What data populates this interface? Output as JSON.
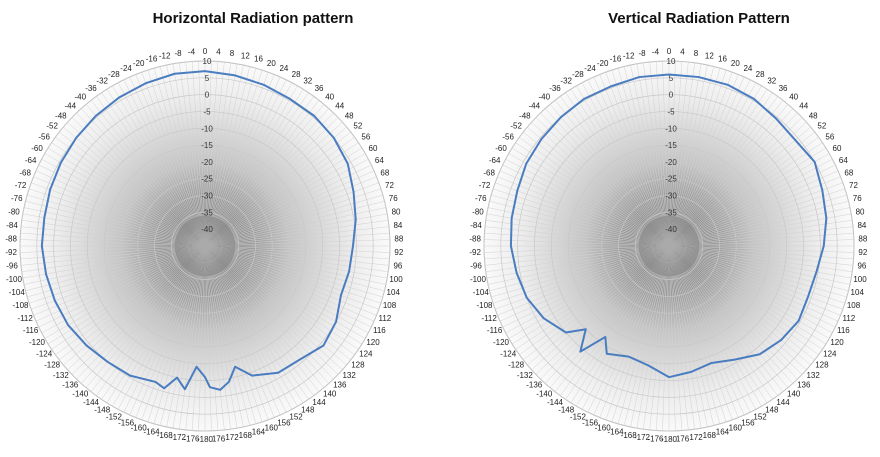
{
  "chart_data": [
    {
      "type": "polar",
      "title": "Horizontal Radiation pattern",
      "angle_unit": "degrees",
      "angle_ticks": [
        0,
        4,
        8,
        12,
        16,
        20,
        24,
        28,
        32,
        36,
        40,
        44,
        48,
        52,
        56,
        60,
        64,
        68,
        72,
        76,
        80,
        84,
        88,
        92,
        96,
        100,
        104,
        108,
        112,
        116,
        120,
        124,
        128,
        132,
        136,
        140,
        144,
        148,
        152,
        156,
        160,
        164,
        168,
        172,
        176,
        -180,
        -176,
        -172,
        -168,
        -164,
        -160,
        -156,
        -152,
        -148,
        -144,
        -140,
        -136,
        -132,
        -128,
        -124,
        -120,
        -116,
        -112,
        -108,
        -104,
        -100,
        -96,
        -92,
        -88,
        -84,
        -80,
        -76,
        -72,
        -68,
        -64,
        -60,
        -56,
        -52,
        -48,
        -44,
        -40,
        -36,
        -32,
        -28,
        -24,
        -20,
        -16,
        -12,
        -8,
        -4
      ],
      "radial_ticks": [
        10,
        5,
        0,
        -5,
        -10,
        -15,
        -20,
        -25,
        -30,
        -35,
        -40
      ],
      "rlim": [
        -45,
        10
      ],
      "series_color": "#4a7cc0",
      "series": [
        {
          "theta": [
            0,
            10,
            20,
            30,
            40,
            50,
            60,
            70,
            80,
            90,
            100,
            110,
            120,
            130,
            140,
            150,
            160,
            166,
            170,
            174,
            178,
            180,
            184,
            188,
            192,
            196,
            200,
            210,
            220,
            230,
            240,
            250,
            260,
            270,
            280,
            290,
            300,
            310,
            320,
            330,
            340,
            350
          ],
          "r": [
            7.0,
            6.5,
            6.0,
            5.5,
            5.5,
            5.0,
            4.0,
            2.0,
            0.5,
            -1.0,
            -1.5,
            -2.0,
            0.0,
            1.0,
            -1.0,
            -1.5,
            -4.0,
            -8.0,
            -4.0,
            -2.0,
            -3.0,
            -6.0,
            -9.0,
            -2.0,
            -5.0,
            -1.0,
            -2.0,
            -0.5,
            0.0,
            1.0,
            2.0,
            2.5,
            3.0,
            3.5,
            3.5,
            4.0,
            4.5,
            5.0,
            5.5,
            6.0,
            6.5,
            7.0
          ]
        }
      ]
    },
    {
      "type": "polar",
      "title": "Vertical Radiation Pattern",
      "angle_unit": "degrees",
      "angle_ticks": [
        0,
        4,
        8,
        12,
        16,
        20,
        24,
        28,
        32,
        36,
        40,
        44,
        48,
        52,
        56,
        60,
        64,
        68,
        72,
        76,
        80,
        84,
        88,
        92,
        96,
        100,
        104,
        108,
        112,
        116,
        120,
        124,
        128,
        132,
        136,
        140,
        144,
        148,
        152,
        156,
        160,
        164,
        168,
        172,
        176,
        -180,
        -176,
        -172,
        -168,
        -164,
        -160,
        -156,
        -152,
        -148,
        -144,
        -140,
        -136,
        -132,
        -128,
        -124,
        -120,
        -116,
        -112,
        -108,
        -104,
        -100,
        -96,
        -92,
        -88,
        -84,
        -80,
        -76,
        -72,
        -68,
        -64,
        -60,
        -56,
        -52,
        -48,
        -44,
        -40,
        -36,
        -32,
        -28,
        -24,
        -20,
        -16,
        -12,
        -8,
        -4
      ],
      "radial_ticks": [
        10,
        5,
        0,
        -5,
        -10,
        -15,
        -20,
        -25,
        -30,
        -35,
        -40
      ],
      "rlim": [
        -45,
        10
      ],
      "series_color": "#4a7cc0",
      "series": [
        {
          "theta": [
            0,
            10,
            20,
            30,
            40,
            50,
            60,
            70,
            80,
            90,
            100,
            110,
            120,
            130,
            140,
            150,
            160,
            170,
            180,
            190,
            200,
            210,
            215,
            220,
            225,
            230,
            240,
            250,
            260,
            270,
            280,
            290,
            300,
            310,
            320,
            330,
            340,
            350
          ],
          "r": [
            6.0,
            6.0,
            6.0,
            5.5,
            4.5,
            4.0,
            5.0,
            3.5,
            2.5,
            1.0,
            -0.5,
            -1.0,
            -0.5,
            -1.5,
            -3.0,
            -6.0,
            -8.0,
            -7.0,
            -6.0,
            -9.0,
            -10.0,
            -8.0,
            -12.0,
            -4.0,
            -10.0,
            -5.0,
            -2.0,
            0.0,
            1.0,
            2.0,
            2.5,
            3.0,
            4.0,
            4.5,
            5.0,
            5.5,
            5.5,
            6.0
          ]
        }
      ]
    }
  ]
}
